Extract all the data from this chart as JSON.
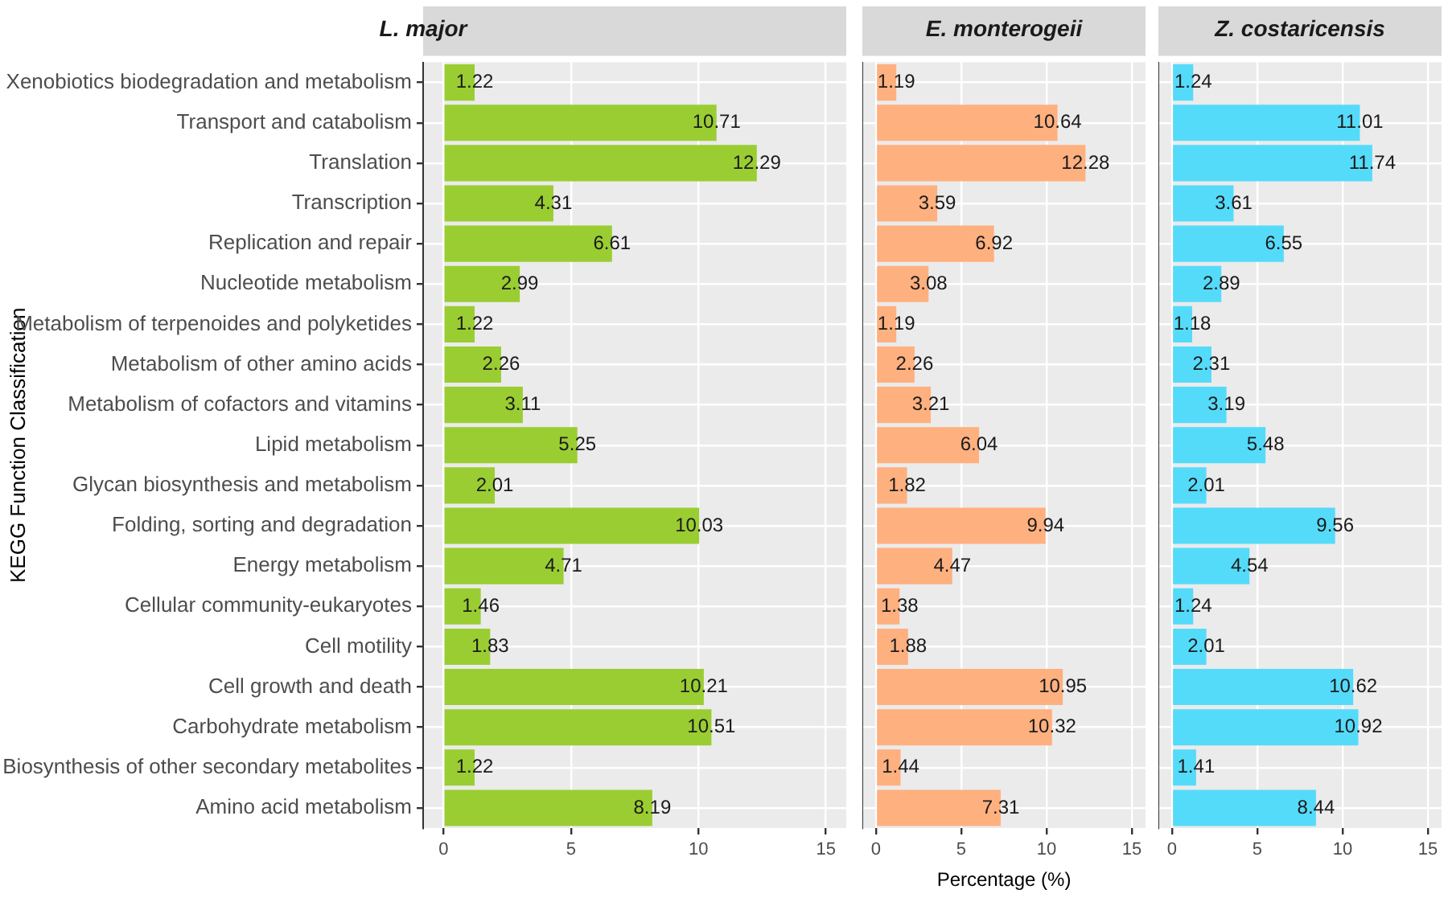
{
  "chart_data": [
    {
      "type": "bar",
      "orientation": "horizontal",
      "title": "L. major",
      "ylabel": "KEGG Function Classification",
      "color": "#9acd32",
      "data_labels": true,
      "grid": true,
      "xlim": [
        -0.8,
        15.8
      ],
      "xticks": [
        0,
        5,
        10,
        15
      ],
      "categories": [
        "Xenobiotics biodegradation and metabolism",
        "Transport and catabolism",
        "Translation",
        "Transcription",
        "Replication and repair",
        "Nucleotide metabolism",
        "Metabolism of terpenoides and polyketides",
        "Metabolism of other amino acids",
        "Metabolism of cofactors and vitamins",
        "Lipid metabolism",
        "Glycan biosynthesis and metabolism",
        "Folding, sorting and degradation",
        "Energy metabolism",
        "Cellular community-eukaryotes",
        "Cell motility",
        "Cell growth and death",
        "Carbohydrate metabolism",
        "Biosynthesis of other secondary metabolites",
        "Amino acid metabolism"
      ],
      "values": [
        1.22,
        10.71,
        12.29,
        4.31,
        6.61,
        2.99,
        1.22,
        2.26,
        3.11,
        5.25,
        2.01,
        10.03,
        4.71,
        1.46,
        1.83,
        10.21,
        10.51,
        1.22,
        8.19
      ]
    },
    {
      "type": "bar",
      "orientation": "horizontal",
      "title": "E. monterogeii",
      "xlabel": "Percentage (%)",
      "color": "#ffb07f",
      "data_labels": true,
      "grid": true,
      "tick_labels": "x",
      "xlim": [
        -0.8,
        15.8
      ],
      "xticks": [
        0,
        5,
        10,
        15
      ],
      "categories": [
        null,
        null,
        null,
        null,
        null,
        null,
        null,
        null,
        null,
        null,
        null,
        null,
        null,
        null,
        null,
        null,
        null,
        null,
        null
      ],
      "values": [
        1.19,
        10.64,
        12.28,
        3.59,
        6.92,
        3.08,
        1.19,
        2.26,
        3.21,
        6.04,
        1.82,
        9.94,
        4.47,
        1.38,
        1.88,
        10.95,
        10.32,
        1.44,
        7.31
      ]
    },
    {
      "type": "bar",
      "orientation": "horizontal",
      "title": "Z. costaricensis",
      "color": "#55dbfa",
      "data_labels": true,
      "grid": true,
      "tick_labels": "x",
      "xlim": [
        -0.8,
        15.8
      ],
      "xticks": [
        0,
        5,
        10,
        15
      ],
      "categories": [
        null,
        null,
        null,
        null,
        null,
        null,
        null,
        null,
        null,
        null,
        null,
        null,
        null,
        null,
        null,
        null,
        null,
        null,
        null
      ],
      "values": [
        1.24,
        11.01,
        11.74,
        3.61,
        6.55,
        2.89,
        1.18,
        2.31,
        3.19,
        5.48,
        2.01,
        9.56,
        4.54,
        1.24,
        2.01,
        10.62,
        10.92,
        1.41,
        8.44
      ]
    }
  ]
}
